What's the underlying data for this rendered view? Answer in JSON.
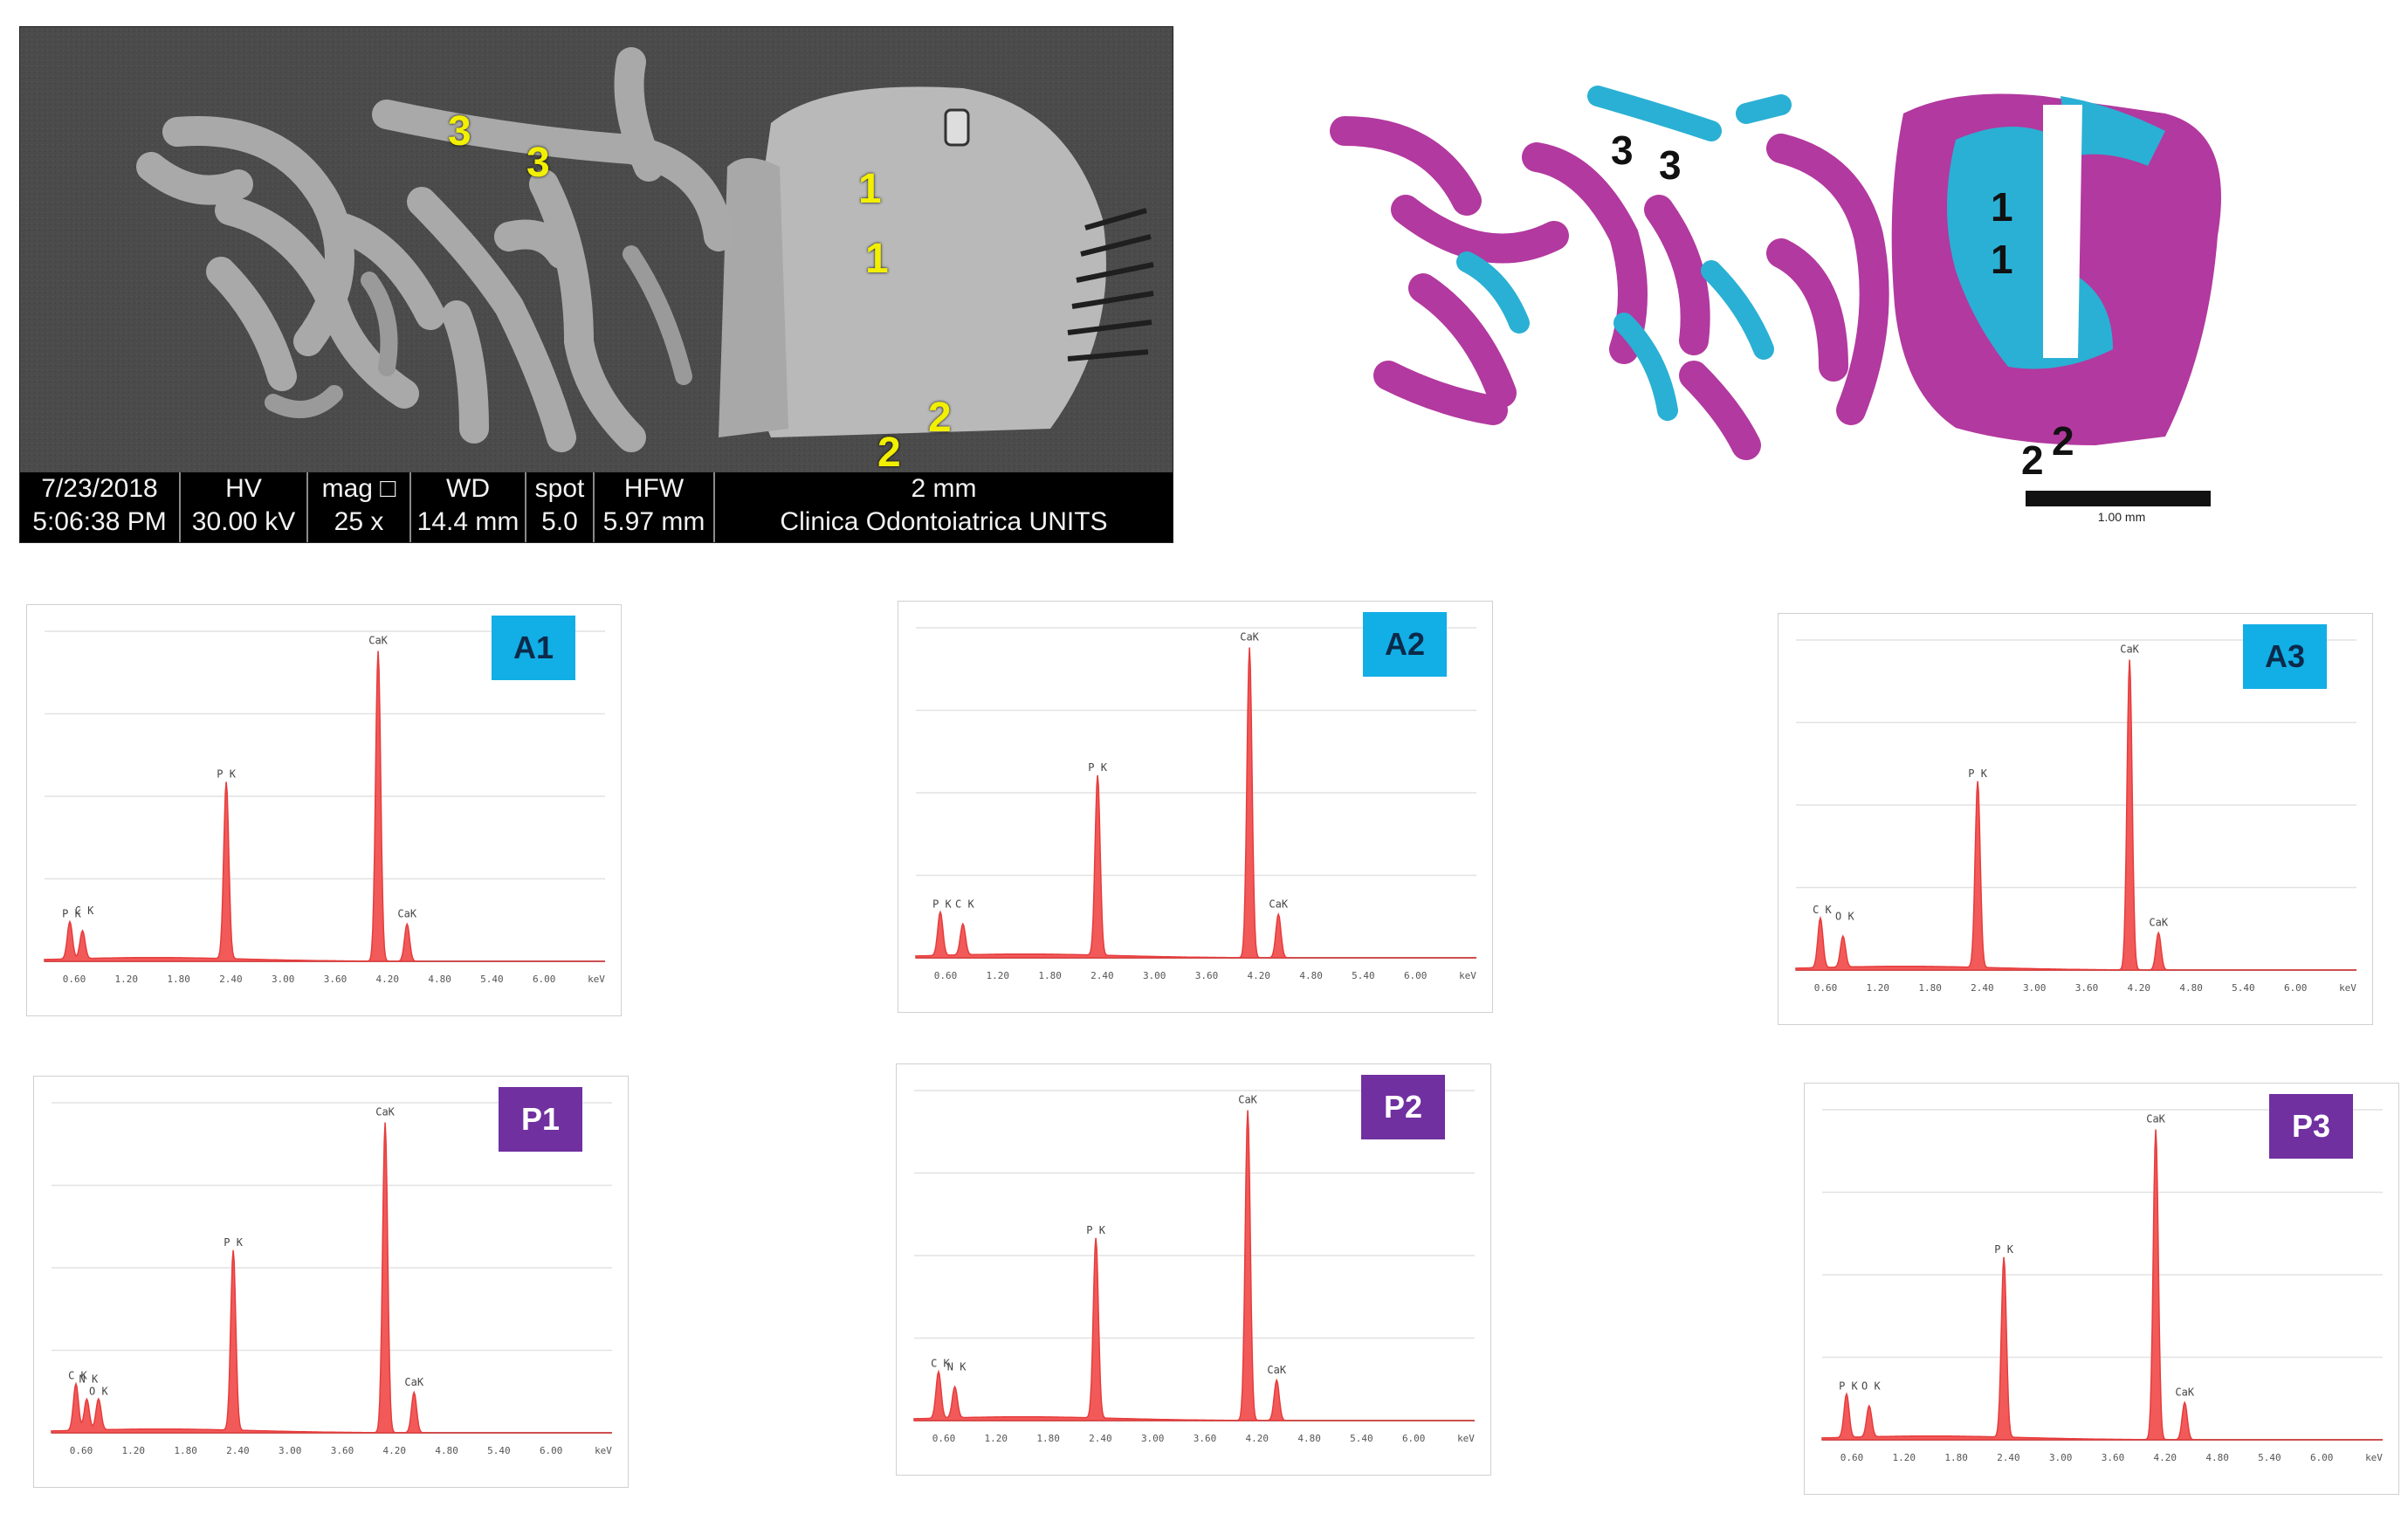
{
  "sem": {
    "labels": [
      "3",
      "3",
      "1",
      "1",
      "2",
      "2"
    ],
    "info_bar": {
      "date": "7/23/2018",
      "time": "5:06:38 PM",
      "hv_label": "HV",
      "hv_value": "30.00 kV",
      "mag_label": "mag □",
      "mag_value": "25 x",
      "wd_label": "WD",
      "wd_value": "14.4 mm",
      "spot_label": "spot",
      "spot_value": "5.0",
      "hfw_label": "HFW",
      "hfw_value": "5.97 mm",
      "scale_label": "2 mm",
      "institution": "Clinica Odontoiatrica UNITS"
    }
  },
  "histology": {
    "labels": [
      "3",
      "3",
      "1",
      "1",
      "2",
      "2"
    ],
    "scale_label": "1.00 mm"
  },
  "colors": {
    "spectrum_fill": "#f25a5a",
    "spectrum_line": "#e63c3c",
    "bone_magenta": "#b2399f",
    "bone_cyan": "#2ab0d4",
    "badge_a": "#12aee6",
    "badge_p": "#7030a0"
  },
  "chart_data": [
    {
      "type": "line",
      "badge": "A1",
      "tick_labels": [
        "0.60",
        "1.20",
        "1.80",
        "2.40",
        "3.00",
        "3.60",
        "4.20",
        "4.80",
        "5.40",
        "6.00",
        "keV"
      ],
      "xlim": [
        0,
        6.2
      ],
      "peaks": [
        {
          "label": "P K",
          "x": 0.28,
          "y": 0.12
        },
        {
          "label": "C K",
          "x": 0.42,
          "y": 0.09
        },
        {
          "label": "P K",
          "x": 2.01,
          "y": 0.57
        },
        {
          "label": "CaK",
          "x": 3.69,
          "y": 1.0
        },
        {
          "label": "CaK",
          "x": 4.01,
          "y": 0.12
        }
      ]
    },
    {
      "type": "line",
      "badge": "A2",
      "tick_labels": [
        "0.60",
        "1.20",
        "1.80",
        "2.40",
        "3.00",
        "3.60",
        "4.20",
        "4.80",
        "5.40",
        "6.00",
        "keV"
      ],
      "xlim": [
        0,
        6.2
      ],
      "peaks": [
        {
          "label": "P K",
          "x": 0.27,
          "y": 0.14
        },
        {
          "label": "C K",
          "x": 0.52,
          "y": 0.1
        },
        {
          "label": "P K",
          "x": 2.01,
          "y": 0.58
        },
        {
          "label": "CaK",
          "x": 3.69,
          "y": 1.0
        },
        {
          "label": "CaK",
          "x": 4.01,
          "y": 0.14
        }
      ]
    },
    {
      "type": "line",
      "badge": "A3",
      "tick_labels": [
        "0.60",
        "1.20",
        "1.80",
        "2.40",
        "3.00",
        "3.60",
        "4.20",
        "4.80",
        "5.40",
        "6.00",
        "keV"
      ],
      "xlim": [
        0,
        6.2
      ],
      "peaks": [
        {
          "label": "C K",
          "x": 0.27,
          "y": 0.16
        },
        {
          "label": "O K",
          "x": 0.52,
          "y": 0.1
        },
        {
          "label": "P K",
          "x": 2.01,
          "y": 0.6
        },
        {
          "label": "CaK",
          "x": 3.69,
          "y": 1.0
        },
        {
          "label": "CaK",
          "x": 4.01,
          "y": 0.12
        }
      ]
    },
    {
      "type": "line",
      "badge": "P1",
      "tick_labels": [
        "0.60",
        "1.20",
        "1.80",
        "2.40",
        "3.00",
        "3.60",
        "4.20",
        "4.80",
        "5.40",
        "6.00",
        "keV"
      ],
      "xlim": [
        0,
        6.2
      ],
      "peaks": [
        {
          "label": "C K",
          "x": 0.27,
          "y": 0.15
        },
        {
          "label": "N K",
          "x": 0.39,
          "y": 0.1
        },
        {
          "label": "O K",
          "x": 0.52,
          "y": 0.1
        },
        {
          "label": "P K",
          "x": 2.01,
          "y": 0.58
        },
        {
          "label": "CaK",
          "x": 3.69,
          "y": 1.0
        },
        {
          "label": "CaK",
          "x": 4.01,
          "y": 0.13
        }
      ]
    },
    {
      "type": "line",
      "badge": "P2",
      "tick_labels": [
        "0.60",
        "1.20",
        "1.80",
        "2.40",
        "3.00",
        "3.60",
        "4.20",
        "4.80",
        "5.40",
        "6.00",
        "keV"
      ],
      "xlim": [
        0,
        6.2
      ],
      "peaks": [
        {
          "label": "C K",
          "x": 0.27,
          "y": 0.15
        },
        {
          "label": "N K",
          "x": 0.45,
          "y": 0.1
        },
        {
          "label": "P K",
          "x": 2.01,
          "y": 0.58
        },
        {
          "label": "CaK",
          "x": 3.69,
          "y": 1.0
        },
        {
          "label": "CaK",
          "x": 4.01,
          "y": 0.13
        }
      ]
    },
    {
      "type": "line",
      "badge": "P3",
      "tick_labels": [
        "0.60",
        "1.20",
        "1.80",
        "2.40",
        "3.00",
        "3.60",
        "4.20",
        "4.80",
        "5.40",
        "6.00",
        "keV"
      ],
      "xlim": [
        0,
        6.2
      ],
      "peaks": [
        {
          "label": "P K",
          "x": 0.27,
          "y": 0.14
        },
        {
          "label": "O K",
          "x": 0.52,
          "y": 0.1
        },
        {
          "label": "P K",
          "x": 2.01,
          "y": 0.58
        },
        {
          "label": "CaK",
          "x": 3.69,
          "y": 1.0
        },
        {
          "label": "CaK",
          "x": 4.01,
          "y": 0.12
        }
      ]
    }
  ]
}
